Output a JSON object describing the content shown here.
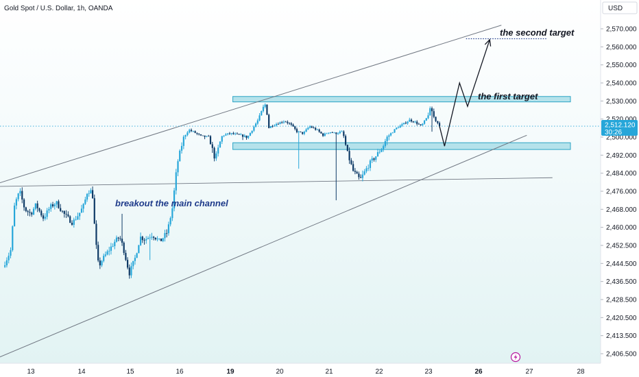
{
  "symbol_title": "Gold Spot / U.S. Dollar, 1h, OANDA",
  "currency_label": "USD",
  "colors": {
    "bull": "#26a6d9",
    "bear": "#0e3a66",
    "zone_fill": "#a9dde8",
    "zone_stroke": "#2aa3c4",
    "channel": "#707782",
    "arrow": "#131722",
    "annotation_main": "#1e3a8a",
    "annotation_target": "#131722",
    "price_badge": "#26a6d9"
  },
  "chart_data": {
    "type": "candlestick",
    "ylim": [
      2400.5,
      2576
    ],
    "price_ticks": [
      {
        "label": "2,570.000",
        "value": 2570
      },
      {
        "label": "2,560.000",
        "value": 2560
      },
      {
        "label": "2,550.000",
        "value": 2550
      },
      {
        "label": "2,540.000",
        "value": 2540
      },
      {
        "label": "2,530.000",
        "value": 2530
      },
      {
        "label": "2,520.000",
        "value": 2520
      },
      {
        "label": "2,500.000",
        "value": 2500
      },
      {
        "label": "2,492.000",
        "value": 2492
      },
      {
        "label": "2,484.000",
        "value": 2484
      },
      {
        "label": "2,476.000",
        "value": 2476
      },
      {
        "label": "2,468.000",
        "value": 2468
      },
      {
        "label": "2,460.000",
        "value": 2460
      },
      {
        "label": "2,452.500",
        "value": 2452.5
      },
      {
        "label": "2,444.500",
        "value": 2444.5
      },
      {
        "label": "2,436.500",
        "value": 2436.5
      },
      {
        "label": "2,428.500",
        "value": 2428.5
      },
      {
        "label": "2,420.500",
        "value": 2420.5
      },
      {
        "label": "2,413.500",
        "value": 2413.5
      },
      {
        "label": "2,406.500",
        "value": 2406.5
      }
    ],
    "date_ticks": [
      {
        "label": "13",
        "t": 1,
        "bold": false
      },
      {
        "label": "14",
        "t": 2,
        "bold": false
      },
      {
        "label": "15",
        "t": 3,
        "bold": false
      },
      {
        "label": "16",
        "t": 4,
        "bold": false
      },
      {
        "label": "19",
        "t": 5,
        "bold": true
      },
      {
        "label": "20",
        "t": 6,
        "bold": false
      },
      {
        "label": "21",
        "t": 7,
        "bold": false
      },
      {
        "label": "22",
        "t": 8,
        "bold": false
      },
      {
        "label": "23",
        "t": 9,
        "bold": false
      },
      {
        "label": "26",
        "t": 10,
        "bold": true
      },
      {
        "label": "27",
        "t": 11,
        "bold": false
      },
      {
        "label": "28",
        "t": 12,
        "bold": false
      }
    ],
    "last_price": {
      "label": "2,512.120",
      "countdown": "30:26",
      "value": 2512.12
    },
    "close_path": [
      [
        0.45,
        2443
      ],
      [
        0.6,
        2450
      ],
      [
        0.68,
        2470
      ],
      [
        0.78,
        2476
      ],
      [
        0.88,
        2468
      ],
      [
        1.0,
        2466
      ],
      [
        1.1,
        2470
      ],
      [
        1.25,
        2464
      ],
      [
        1.38,
        2469
      ],
      [
        1.5,
        2471
      ],
      [
        1.65,
        2466
      ],
      [
        1.82,
        2462
      ],
      [
        1.95,
        2466
      ],
      [
        2.05,
        2470
      ],
      [
        2.12,
        2476
      ],
      [
        2.22,
        2476
      ],
      [
        2.28,
        2456
      ],
      [
        2.35,
        2443
      ],
      [
        2.42,
        2446
      ],
      [
        2.55,
        2450
      ],
      [
        2.68,
        2454
      ],
      [
        2.78,
        2456
      ],
      [
        2.85,
        2452
      ],
      [
        2.98,
        2440
      ],
      [
        3.1,
        2447
      ],
      [
        3.2,
        2456
      ],
      [
        3.3,
        2455
      ],
      [
        3.45,
        2457
      ],
      [
        3.6,
        2454
      ],
      [
        3.75,
        2458
      ],
      [
        3.85,
        2468
      ],
      [
        3.95,
        2488
      ],
      [
        4.08,
        2500
      ],
      [
        4.18,
        2508
      ],
      [
        4.3,
        2505
      ],
      [
        4.42,
        2501
      ],
      [
        4.58,
        2500
      ],
      [
        4.7,
        2490
      ],
      [
        4.85,
        2502
      ],
      [
        5.0,
        2504
      ],
      [
        5.2,
        2502
      ],
      [
        5.35,
        2500
      ],
      [
        5.55,
        2518
      ],
      [
        5.66,
        2526
      ],
      [
        5.73,
        2529
      ],
      [
        5.77,
        2510
      ],
      [
        5.85,
        2513
      ],
      [
        6.0,
        2516
      ],
      [
        6.1,
        2518
      ],
      [
        6.22,
        2514
      ],
      [
        6.35,
        2506
      ],
      [
        6.48,
        2504
      ],
      [
        6.6,
        2512
      ],
      [
        6.75,
        2508
      ],
      [
        6.88,
        2502
      ],
      [
        7.0,
        2506
      ],
      [
        7.12,
        2504
      ],
      [
        7.25,
        2506
      ],
      [
        7.35,
        2494
      ],
      [
        7.48,
        2485
      ],
      [
        7.62,
        2481
      ],
      [
        7.8,
        2488
      ],
      [
        7.95,
        2492
      ],
      [
        8.08,
        2496
      ],
      [
        8.2,
        2502
      ],
      [
        8.35,
        2510
      ],
      [
        8.48,
        2514
      ],
      [
        8.62,
        2519
      ],
      [
        8.75,
        2516
      ],
      [
        8.85,
        2512
      ],
      [
        8.98,
        2522
      ],
      [
        9.05,
        2526
      ],
      [
        9.12,
        2520
      ],
      [
        9.18,
        2516
      ],
      [
        9.22,
        2512.12
      ]
    ],
    "support_zone": [
      2494.5,
      2497.5
    ],
    "resistance_zone": [
      2529.5,
      2532.5
    ],
    "channel_upper": [
      [
        0,
        2477
      ],
      [
        10.45,
        2572
      ]
    ],
    "channel_lower": [
      [
        0,
        2402
      ],
      [
        10.95,
        2502
      ]
    ],
    "breakout_line": [
      [
        0,
        2478
      ],
      [
        11.45,
        2482
      ]
    ],
    "projection_path": [
      [
        9.22,
        2512
      ],
      [
        9.32,
        2496
      ],
      [
        9.62,
        2540
      ],
      [
        9.78,
        2527
      ],
      [
        10.22,
        2564
      ]
    ],
    "second_target_level": 2564.5,
    "annotations": {
      "breakout": "breakout the main channel",
      "first_target": "the first target",
      "second_target": "the second target"
    }
  }
}
